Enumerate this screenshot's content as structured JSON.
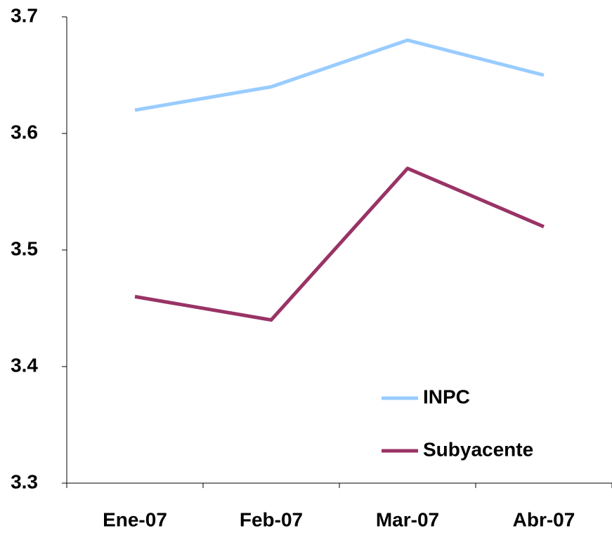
{
  "chart_data": {
    "type": "line",
    "categories": [
      "Ene-07",
      "Feb-07",
      "Mar-07",
      "Abr-07"
    ],
    "series": [
      {
        "name": "INPC",
        "color": "#99ccff",
        "values": [
          3.62,
          3.64,
          3.68,
          3.65
        ]
      },
      {
        "name": "Subyacente",
        "color": "#993366",
        "values": [
          3.46,
          3.44,
          3.57,
          3.52
        ]
      }
    ],
    "ylim": [
      3.3,
      3.7
    ],
    "yticks": [
      3.3,
      3.4,
      3.5,
      3.6,
      3.7
    ],
    "grid": false,
    "legend": "lower-right"
  }
}
